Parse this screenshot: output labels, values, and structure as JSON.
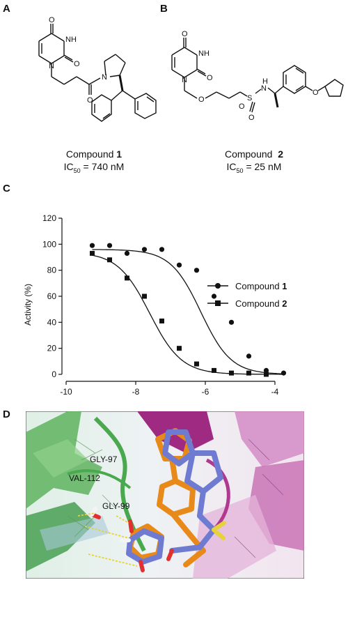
{
  "panels": {
    "a": "A",
    "b": "B",
    "c": "C",
    "d": "D"
  },
  "compound1": {
    "label": "Compound",
    "number": "1",
    "ic50_prefix": "IC",
    "ic50_sub": "50",
    "ic50_value": " = 740 nM"
  },
  "compound2": {
    "label": "Compound",
    "number": "2",
    "ic50_prefix": "IC",
    "ic50_sub": "50",
    "ic50_value": " = 25 nM"
  },
  "atoms": {
    "O": "O",
    "N": "N",
    "NH": "NH",
    "H": "H",
    "S": "S"
  },
  "chart_data": {
    "type": "scatter",
    "ylabel": "Activity (%)",
    "xlabel": "",
    "xlim": [
      -10,
      -4
    ],
    "ylim": [
      0,
      120
    ],
    "xticks": [
      -10,
      -8,
      -6,
      -4
    ],
    "yticks": [
      0,
      20,
      40,
      60,
      80,
      100,
      120
    ],
    "legend_position": "right",
    "series": [
      {
        "name": "Compound 1",
        "marker": "circle",
        "points": [
          [
            -9.25,
            99
          ],
          [
            -8.75,
            99
          ],
          [
            -8.25,
            93
          ],
          [
            -7.75,
            96
          ],
          [
            -7.25,
            96
          ],
          [
            -6.75,
            84
          ],
          [
            -6.25,
            80
          ],
          [
            -5.75,
            60
          ],
          [
            -5.25,
            40
          ],
          [
            -4.75,
            14
          ],
          [
            -4.25,
            3
          ],
          [
            -3.75,
            1
          ]
        ],
        "fit": {
          "top": 96,
          "bottom": 0,
          "logIC50": -6.13,
          "hill": 1.0
        }
      },
      {
        "name": "Compound 2",
        "marker": "square",
        "points": [
          [
            -9.25,
            93
          ],
          [
            -8.75,
            88
          ],
          [
            -8.25,
            74
          ],
          [
            -7.75,
            60
          ],
          [
            -7.25,
            41
          ],
          [
            -6.75,
            20
          ],
          [
            -6.25,
            8
          ],
          [
            -5.75,
            3
          ],
          [
            -5.25,
            1
          ],
          [
            -4.75,
            1
          ],
          [
            -4.25,
            0
          ]
        ],
        "fit": {
          "top": 94,
          "bottom": 0,
          "logIC50": -7.6,
          "hill": 0.95
        }
      }
    ]
  },
  "legend": {
    "c1_label": "Compound ",
    "c1_num": "1",
    "c2_label": "Compound ",
    "c2_num": "2"
  },
  "residues": {
    "gly97": "GLY-97",
    "val112": "VAL-112",
    "gly99": "GLY-99"
  },
  "colors": {
    "green": "#4aa84f",
    "magenta": "#b0388f",
    "orange": "#e88a1a",
    "slate": "#6f7bd0",
    "yellow": "#e6d23a"
  }
}
